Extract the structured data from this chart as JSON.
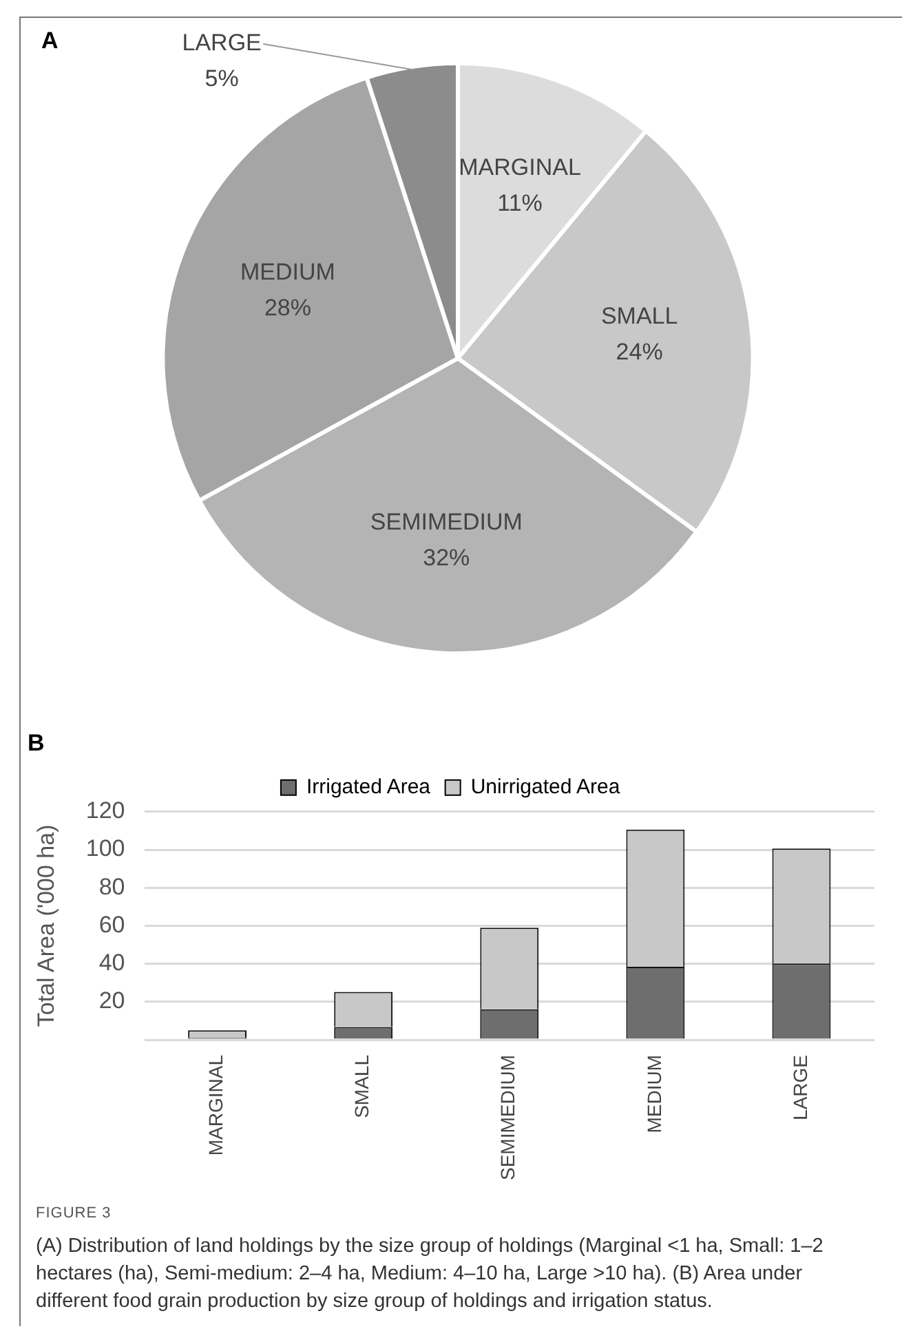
{
  "chart_data": [
    {
      "type": "pie",
      "title": "A",
      "categories": [
        "MARGINAL",
        "SMALL",
        "SEMIMEDIUM",
        "MEDIUM",
        "LARGE"
      ],
      "values": [
        11,
        24,
        32,
        28,
        5
      ],
      "colors": [
        "#dcdcdc",
        "#c8c8c8",
        "#b4b4b4",
        "#a5a5a5",
        "#8c8c8c"
      ],
      "value_labels": [
        "11%",
        "24%",
        "32%",
        "28%",
        "5%"
      ]
    },
    {
      "type": "bar",
      "title": "B",
      "ylabel": "Total Area ('000 ha)",
      "categories": [
        "MARGINAL",
        "SMALL",
        "SEMIMEDIUM",
        "MEDIUM",
        "LARGE"
      ],
      "stacked": true,
      "series": [
        {
          "name": "Irrigated Area",
          "color": "#6e6e6e",
          "values": [
            1.2,
            6.7,
            16,
            38.4,
            40.1
          ]
        },
        {
          "name": "Unirrigated Area",
          "color": "#c8c8c8",
          "values": [
            3.8,
            18.5,
            43,
            72.2,
            60.5
          ]
        }
      ],
      "ylim": [
        0,
        120
      ],
      "yticks": [
        {
          "value": 0,
          "label": null
        },
        20,
        40,
        60,
        80,
        100,
        120
      ],
      "grid": "y",
      "legend": "top",
      "annotations": [
        "FIGURE 3",
        "(A) Distribution of land holdings by the size group of holdings (Marginal <1 ha, Small: 1–2 hectares (ha), Semi-medium: 2–4 ha, Medium: 4–10 ha, Large >10 ha). (B) Area under different food grain production by size group of holdings and irrigation status."
      ]
    }
  ]
}
